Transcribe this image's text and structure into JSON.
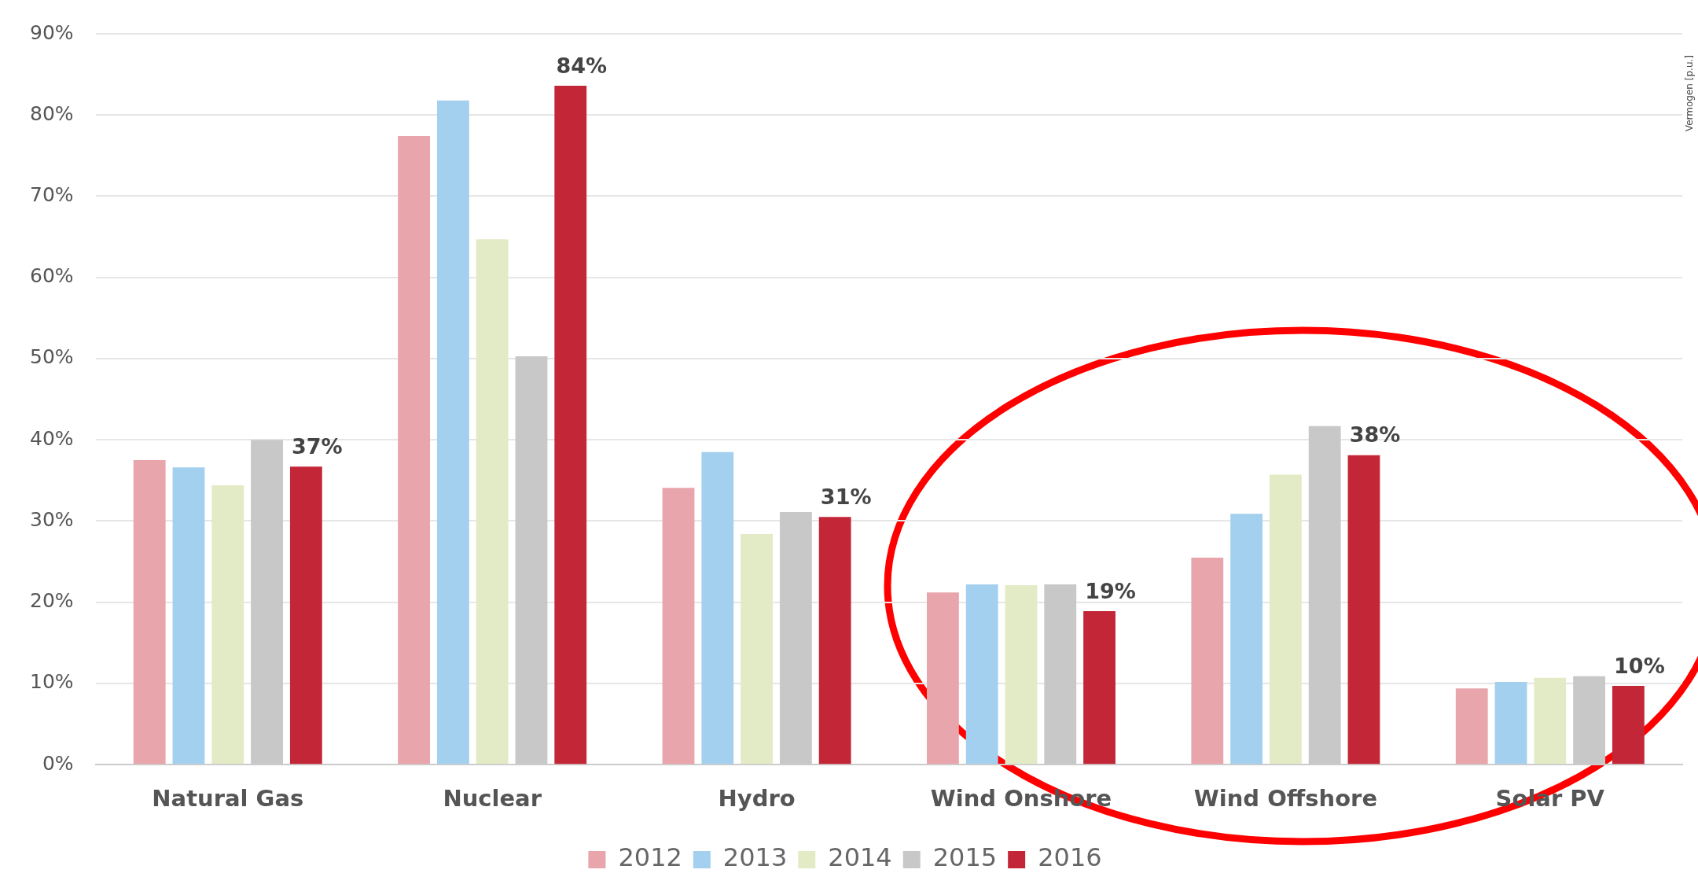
{
  "chart_data": {
    "type": "bar",
    "categories": [
      "Natural Gas",
      "Nuclear",
      "Hydro",
      "Wind Onshore",
      "Wind Offshore",
      "Solar PV"
    ],
    "series": [
      {
        "name": "2012",
        "color": "#e8a5ab",
        "values": [
          37.5,
          77.4,
          34.1,
          21.2,
          25.5,
          9.4
        ]
      },
      {
        "name": "2013",
        "color": "#a3d0ee",
        "values": [
          36.6,
          81.8,
          38.5,
          22.2,
          30.9,
          10.2
        ]
      },
      {
        "name": "2014",
        "color": "#e2ebc6",
        "values": [
          34.4,
          64.7,
          28.4,
          22.1,
          35.7,
          10.7
        ]
      },
      {
        "name": "2015",
        "color": "#c8c8c8",
        "values": [
          40.0,
          50.3,
          31.1,
          22.2,
          41.7,
          10.9
        ]
      },
      {
        "name": "2016",
        "color": "#c32737",
        "values": [
          36.7,
          83.6,
          30.5,
          18.9,
          38.1,
          9.7
        ],
        "value_labels": [
          "37%",
          "84%",
          "31%",
          "19%",
          "38%",
          "10%"
        ]
      }
    ],
    "ylim": [
      0,
      90
    ],
    "yticks": [
      {
        "value": 0,
        "label": "0%"
      },
      {
        "value": 10,
        "label": "10%"
      },
      {
        "value": 20,
        "label": "20%"
      },
      {
        "value": 30,
        "label": "30%"
      },
      {
        "value": 40,
        "label": "40%"
      },
      {
        "value": 50,
        "label": "50%"
      },
      {
        "value": 60,
        "label": "60%"
      },
      {
        "value": 70,
        "label": "70%"
      },
      {
        "value": 80,
        "label": "80%"
      },
      {
        "value": 90,
        "label": "90%"
      }
    ],
    "grid": "y",
    "legend": "bottom",
    "annotations": [
      "Vermogen [p.u.]"
    ]
  }
}
